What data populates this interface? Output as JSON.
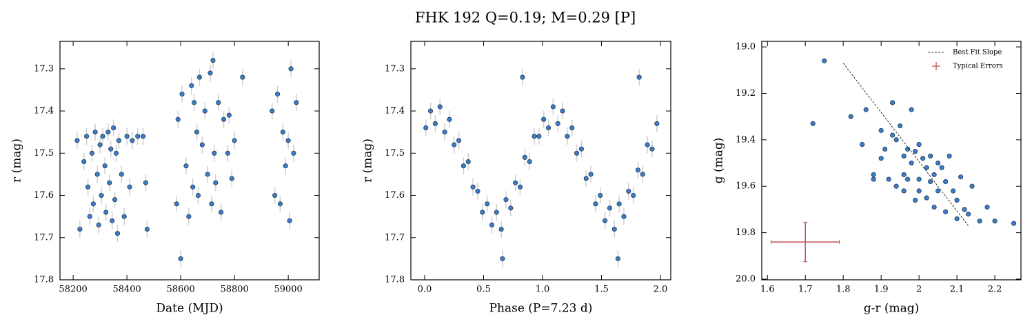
{
  "title": "FHK 192  Q=0.19; M=0.29 [P]",
  "chart_data": [
    {
      "type": "scatter",
      "xlabel": "Date (MJD)",
      "ylabel": "r (mag)",
      "xlim": [
        58151,
        59115
      ],
      "ylim": [
        17.8,
        17.235
      ],
      "xticks": [
        58200,
        58400,
        58600,
        58800,
        59000
      ],
      "yticks": [
        17.3,
        17.4,
        17.5,
        17.6,
        17.7,
        17.8
      ],
      "series": [
        {
          "color": "#3b7dc8",
          "yerr": 0.02,
          "x": [
            58215,
            58225,
            58240,
            58250,
            58255,
            58262,
            58270,
            58275,
            58282,
            58290,
            58295,
            58300,
            58305,
            58310,
            58318,
            58322,
            58330,
            58335,
            58340,
            58345,
            58350,
            58355,
            58360,
            58365,
            58370,
            58380,
            58390,
            58400,
            58410,
            58420,
            58440,
            58460,
            58470,
            58475,
            58585,
            58590,
            58600,
            58605,
            58620,
            58630,
            58640,
            58645,
            58650,
            58660,
            58665,
            58670,
            58680,
            58690,
            58700,
            58710,
            58715,
            58720,
            58725,
            58730,
            58740,
            58750,
            58760,
            58775,
            58780,
            58790,
            58800,
            58830,
            58940,
            58950,
            58960,
            58970,
            58980,
            58990,
            59000,
            59005,
            59010,
            59020,
            59030
          ],
          "values": [
            17.47,
            17.68,
            17.52,
            17.46,
            17.58,
            17.65,
            17.5,
            17.62,
            17.45,
            17.55,
            17.67,
            17.48,
            17.6,
            17.46,
            17.53,
            17.64,
            17.45,
            17.57,
            17.49,
            17.66,
            17.44,
            17.61,
            17.5,
            17.69,
            17.47,
            17.55,
            17.65,
            17.46,
            17.58,
            17.47,
            17.46,
            17.46,
            17.57,
            17.68,
            17.62,
            17.42,
            17.75,
            17.36,
            17.53,
            17.65,
            17.34,
            17.58,
            17.38,
            17.45,
            17.6,
            17.32,
            17.48,
            17.4,
            17.55,
            17.31,
            17.62,
            17.28,
            17.5,
            17.57,
            17.38,
            17.64,
            17.42,
            17.5,
            17.41,
            17.56,
            17.47,
            17.32,
            17.4,
            17.6,
            17.36,
            17.62,
            17.45,
            17.53,
            17.47,
            17.66,
            17.3,
            17.5,
            17.38
          ]
        }
      ]
    },
    {
      "type": "scatter",
      "xlabel": "Phase (P=7.23 d)",
      "ylabel": "r (mag)",
      "xlim": [
        -0.117,
        2.088
      ],
      "ylim": [
        17.8,
        17.235
      ],
      "xticks": [
        {
          "value": 0,
          "label": "0.0"
        },
        0.5,
        {
          "value": 1,
          "label": "1.0"
        },
        1.5,
        {
          "value": 2,
          "label": "2.0"
        }
      ],
      "yticks": [
        17.3,
        17.4,
        17.5,
        17.6,
        17.7,
        17.8
      ],
      "series": [
        {
          "color": "#3b7dc8",
          "yerr": 0.02,
          "x": [
            0.01,
            0.05,
            0.09,
            0.13,
            0.17,
            0.21,
            0.25,
            0.29,
            0.33,
            0.37,
            0.41,
            0.45,
            0.49,
            0.53,
            0.57,
            0.61,
            0.65,
            0.69,
            0.73,
            0.77,
            0.81,
            0.85,
            0.89,
            0.93,
            0.97,
            1.01,
            1.05,
            1.09,
            1.13,
            1.17,
            1.21,
            1.25,
            1.29,
            1.33,
            1.37,
            1.41,
            1.45,
            1.49,
            1.53,
            1.57,
            1.61,
            1.65,
            1.69,
            1.73,
            1.77,
            1.81,
            1.85,
            1.89,
            1.93,
            1.97,
            0.66,
            1.64,
            0.83,
            1.82
          ],
          "values": [
            17.44,
            17.4,
            17.43,
            17.39,
            17.45,
            17.42,
            17.48,
            17.47,
            17.53,
            17.52,
            17.58,
            17.59,
            17.64,
            17.62,
            17.67,
            17.64,
            17.68,
            17.61,
            17.63,
            17.57,
            17.58,
            17.51,
            17.52,
            17.46,
            17.46,
            17.42,
            17.44,
            17.39,
            17.43,
            17.4,
            17.46,
            17.44,
            17.5,
            17.49,
            17.56,
            17.55,
            17.62,
            17.6,
            17.66,
            17.63,
            17.68,
            17.62,
            17.65,
            17.59,
            17.6,
            17.54,
            17.55,
            17.48,
            17.49,
            17.43,
            17.75,
            17.75,
            17.32,
            17.32
          ]
        }
      ]
    },
    {
      "type": "scatter",
      "xlabel": "g-r (mag)",
      "ylabel": "g (mag)",
      "xlim": [
        1.585,
        2.269
      ],
      "ylim": [
        20.003,
        18.976
      ],
      "xticks": [
        1.6,
        1.7,
        1.8,
        1.9,
        2.0,
        2.1,
        2.2
      ],
      "yticks": [
        {
          "value": 19,
          "label": "19.0"
        },
        19.2,
        19.4,
        19.6,
        19.8,
        {
          "value": 20,
          "label": "20.0"
        }
      ],
      "legend": "upper right",
      "series": [
        {
          "color": "#3b7dc8",
          "x": [
            1.72,
            1.75,
            1.82,
            1.85,
            1.86,
            1.88,
            1.88,
            1.9,
            1.91,
            1.92,
            1.93,
            1.94,
            1.94,
            1.95,
            1.96,
            1.96,
            1.97,
            1.97,
            1.98,
            1.98,
            1.99,
            1.99,
            2.0,
            2.0,
            2.01,
            2.02,
            2.02,
            2.03,
            2.04,
            2.04,
            2.05,
            2.05,
            2.06,
            2.07,
            2.07,
            2.08,
            2.09,
            2.1,
            2.1,
            2.11,
            2.12,
            2.13,
            2.14,
            2.16,
            2.18,
            2.2,
            2.25,
            1.9,
            1.93,
            1.96,
            2.0,
            2.03
          ],
          "values": [
            19.33,
            19.06,
            19.3,
            19.42,
            19.27,
            19.55,
            19.57,
            19.36,
            19.44,
            19.57,
            19.24,
            19.4,
            19.6,
            19.34,
            19.47,
            19.62,
            19.44,
            19.57,
            19.27,
            19.5,
            19.45,
            19.66,
            19.42,
            19.57,
            19.48,
            19.52,
            19.65,
            19.47,
            19.55,
            19.69,
            19.5,
            19.62,
            19.52,
            19.58,
            19.71,
            19.47,
            19.62,
            19.66,
            19.74,
            19.56,
            19.7,
            19.72,
            19.6,
            19.75,
            19.69,
            19.75,
            19.76,
            19.48,
            19.38,
            19.55,
            19.62,
            19.58
          ]
        },
        {
          "type": "line",
          "name": "Best Fit Slope",
          "color": "#000000",
          "x": [
            1.8,
            2.13
          ],
          "values": [
            19.07,
            19.77
          ]
        },
        {
          "type": "errorbar",
          "name": "Typical Errors",
          "color": "#c44e52",
          "x": [
            1.7
          ],
          "values": [
            19.84
          ],
          "xerr": 0.09,
          "yerr": 0.085
        }
      ]
    }
  ]
}
